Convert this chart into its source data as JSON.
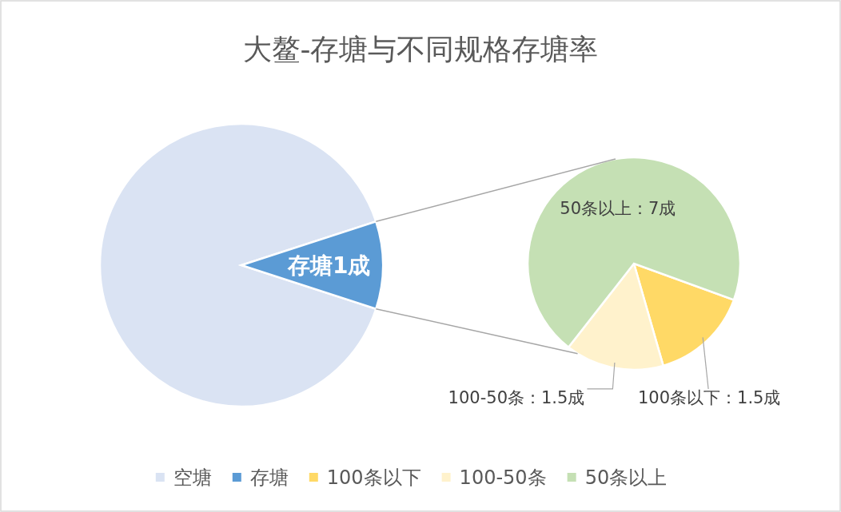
{
  "chart_data": [
    {
      "type": "pie",
      "title": "大鳌-存塘与不同规格存塘率",
      "categories": [
        "空塘",
        "存塘"
      ],
      "values": [
        9,
        1
      ],
      "colors": [
        "#dae3f3",
        "#5b9bd5"
      ],
      "value_labels": [
        null,
        "存塘1成"
      ],
      "legend": "bottom"
    },
    {
      "type": "pie",
      "categories": [
        "100条以下",
        "100-50条",
        "50条以上"
      ],
      "values": [
        1.5,
        1.5,
        7
      ],
      "colors": [
        "#ffd966",
        "#fff2cc",
        "#c5e0b4"
      ],
      "value_labels": [
        "100条以下：1.5成",
        "100-50条：1.5成",
        "50条以上：7成"
      ],
      "legend": "bottom"
    }
  ]
}
